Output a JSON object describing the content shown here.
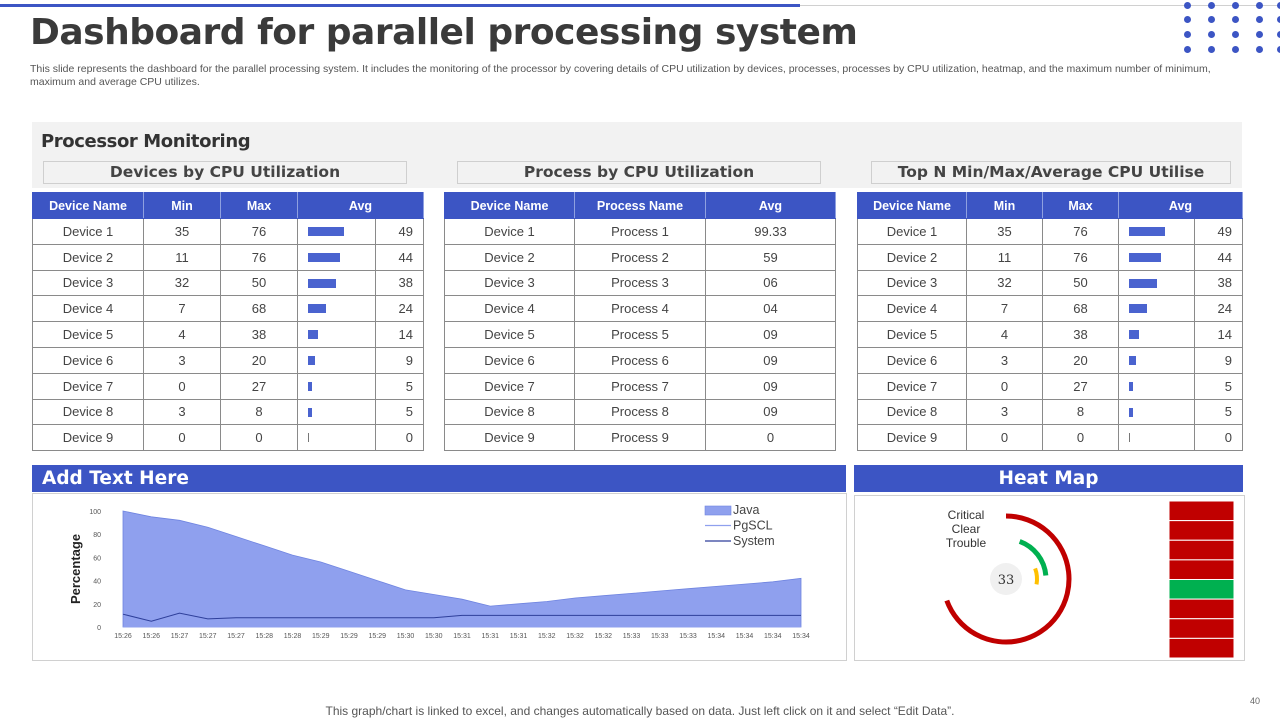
{
  "title": "Dashboard for parallel processing system",
  "description": "This slide represents the dashboard for the parallel processing system. It includes the monitoring of the processor by covering details of CPU utilization by devices, processes, processes by CPU utilization, heatmap, and the maximum number of minimum, maximum and average CPU utilizes.",
  "processor_monitoring": {
    "title": "Processor Monitoring",
    "devices_title": "Devices by CPU Utilization",
    "process_title": "Process by CPU Utilization",
    "topn_title": "Top N Min/Max/Average CPU Utilise"
  },
  "device_headers": [
    "Device Name",
    "Min",
    "Max",
    "Avg"
  ],
  "process_headers": [
    "Device Name",
    "Process Name",
    "Avg"
  ],
  "devices": [
    {
      "name": "Device 1",
      "min": "35",
      "max": "76",
      "avg": "49"
    },
    {
      "name": "Device 2",
      "min": "11",
      "max": "76",
      "avg": "44"
    },
    {
      "name": "Device 3",
      "min": "32",
      "max": "50",
      "avg": "38"
    },
    {
      "name": "Device 4",
      "min": "7",
      "max": "68",
      "avg": "24"
    },
    {
      "name": "Device 5",
      "min": "4",
      "max": "38",
      "avg": "14"
    },
    {
      "name": "Device 6",
      "min": "3",
      "max": "20",
      "avg": "9"
    },
    {
      "name": "Device 7",
      "min": "0",
      "max": "27",
      "avg": "5"
    },
    {
      "name": "Device 8",
      "min": "3",
      "max": "8",
      "avg": "5"
    },
    {
      "name": "Device 9",
      "min": "0",
      "max": "0",
      "avg": "0"
    }
  ],
  "processes": [
    {
      "device": "Device 1",
      "process": "Process 1",
      "avg": "99.33"
    },
    {
      "device": "Device 2",
      "process": "Process 2",
      "avg": "59"
    },
    {
      "device": "Device 3",
      "process": "Process 3",
      "avg": "06"
    },
    {
      "device": "Device 4",
      "process": "Process 4",
      "avg": "04"
    },
    {
      "device": "Device 5",
      "process": "Process 5",
      "avg": "09"
    },
    {
      "device": "Device 6",
      "process": "Process 6",
      "avg": "09"
    },
    {
      "device": "Device 7",
      "process": "Process 7",
      "avg": "09"
    },
    {
      "device": "Device 8",
      "process": "Process 8",
      "avg": "09"
    },
    {
      "device": "Device 9",
      "process": "Process 9",
      "avg": "0"
    }
  ],
  "add_text_title": "Add Text Here",
  "heatmap_title": "Heat Map",
  "heatmap": {
    "labels": [
      "Critical",
      "Clear",
      "Trouble"
    ],
    "value": "33",
    "cell_colors": [
      "#c00000",
      "#c00000",
      "#c00000",
      "#c00000",
      "#00b050",
      "#c00000",
      "#c00000",
      "#c00000"
    ],
    "accent_red": "#c00000",
    "accent_green": "#00b050",
    "accent_yellow": "#ffc000"
  },
  "chart_data": {
    "type": "area",
    "title": "",
    "xlabel": "",
    "ylabel": "Percentage",
    "ylim": [
      0,
      100
    ],
    "yticks": [
      0,
      20,
      40,
      60,
      80,
      100
    ],
    "x": [
      "15:26",
      "15:26",
      "15:27",
      "15:27",
      "15:27",
      "15:28",
      "15:28",
      "15:29",
      "15:29",
      "15:29",
      "15:30",
      "15:30",
      "15:31",
      "15:31",
      "15:31",
      "15:32",
      "15:32",
      "15:32",
      "15:33",
      "15:33",
      "15:33",
      "15:34",
      "15:34",
      "15:34",
      "15:34"
    ],
    "legend_position": "top-right",
    "grid": false,
    "series": [
      {
        "name": "Java",
        "type": "area",
        "color": "#8fa0ee",
        "values": [
          100,
          95,
          92,
          86,
          78,
          70,
          62,
          56,
          48,
          40,
          32,
          28,
          24,
          18,
          20,
          22,
          25,
          27,
          29,
          31,
          33,
          35,
          37,
          39,
          42
        ]
      },
      {
        "name": "PgSCL",
        "type": "line",
        "color": "#8fa0ee",
        "values": [
          0,
          0,
          0,
          0,
          0,
          0,
          0,
          0,
          0,
          0,
          0,
          0,
          0,
          0,
          0,
          0,
          0,
          0,
          0,
          0,
          0,
          0,
          0,
          0,
          0
        ]
      },
      {
        "name": "System",
        "type": "line",
        "color": "#2e3f9a",
        "values": [
          11,
          5,
          12,
          7,
          8,
          8,
          8,
          8,
          8,
          8,
          8,
          8,
          10,
          10,
          10,
          10,
          10,
          10,
          10,
          10,
          10,
          10,
          10,
          10,
          10
        ]
      }
    ]
  },
  "footer": "This graph/chart is linked to excel, and changes automatically based on data. Just left click on it and select “Edit Data”.",
  "page_number": "40"
}
